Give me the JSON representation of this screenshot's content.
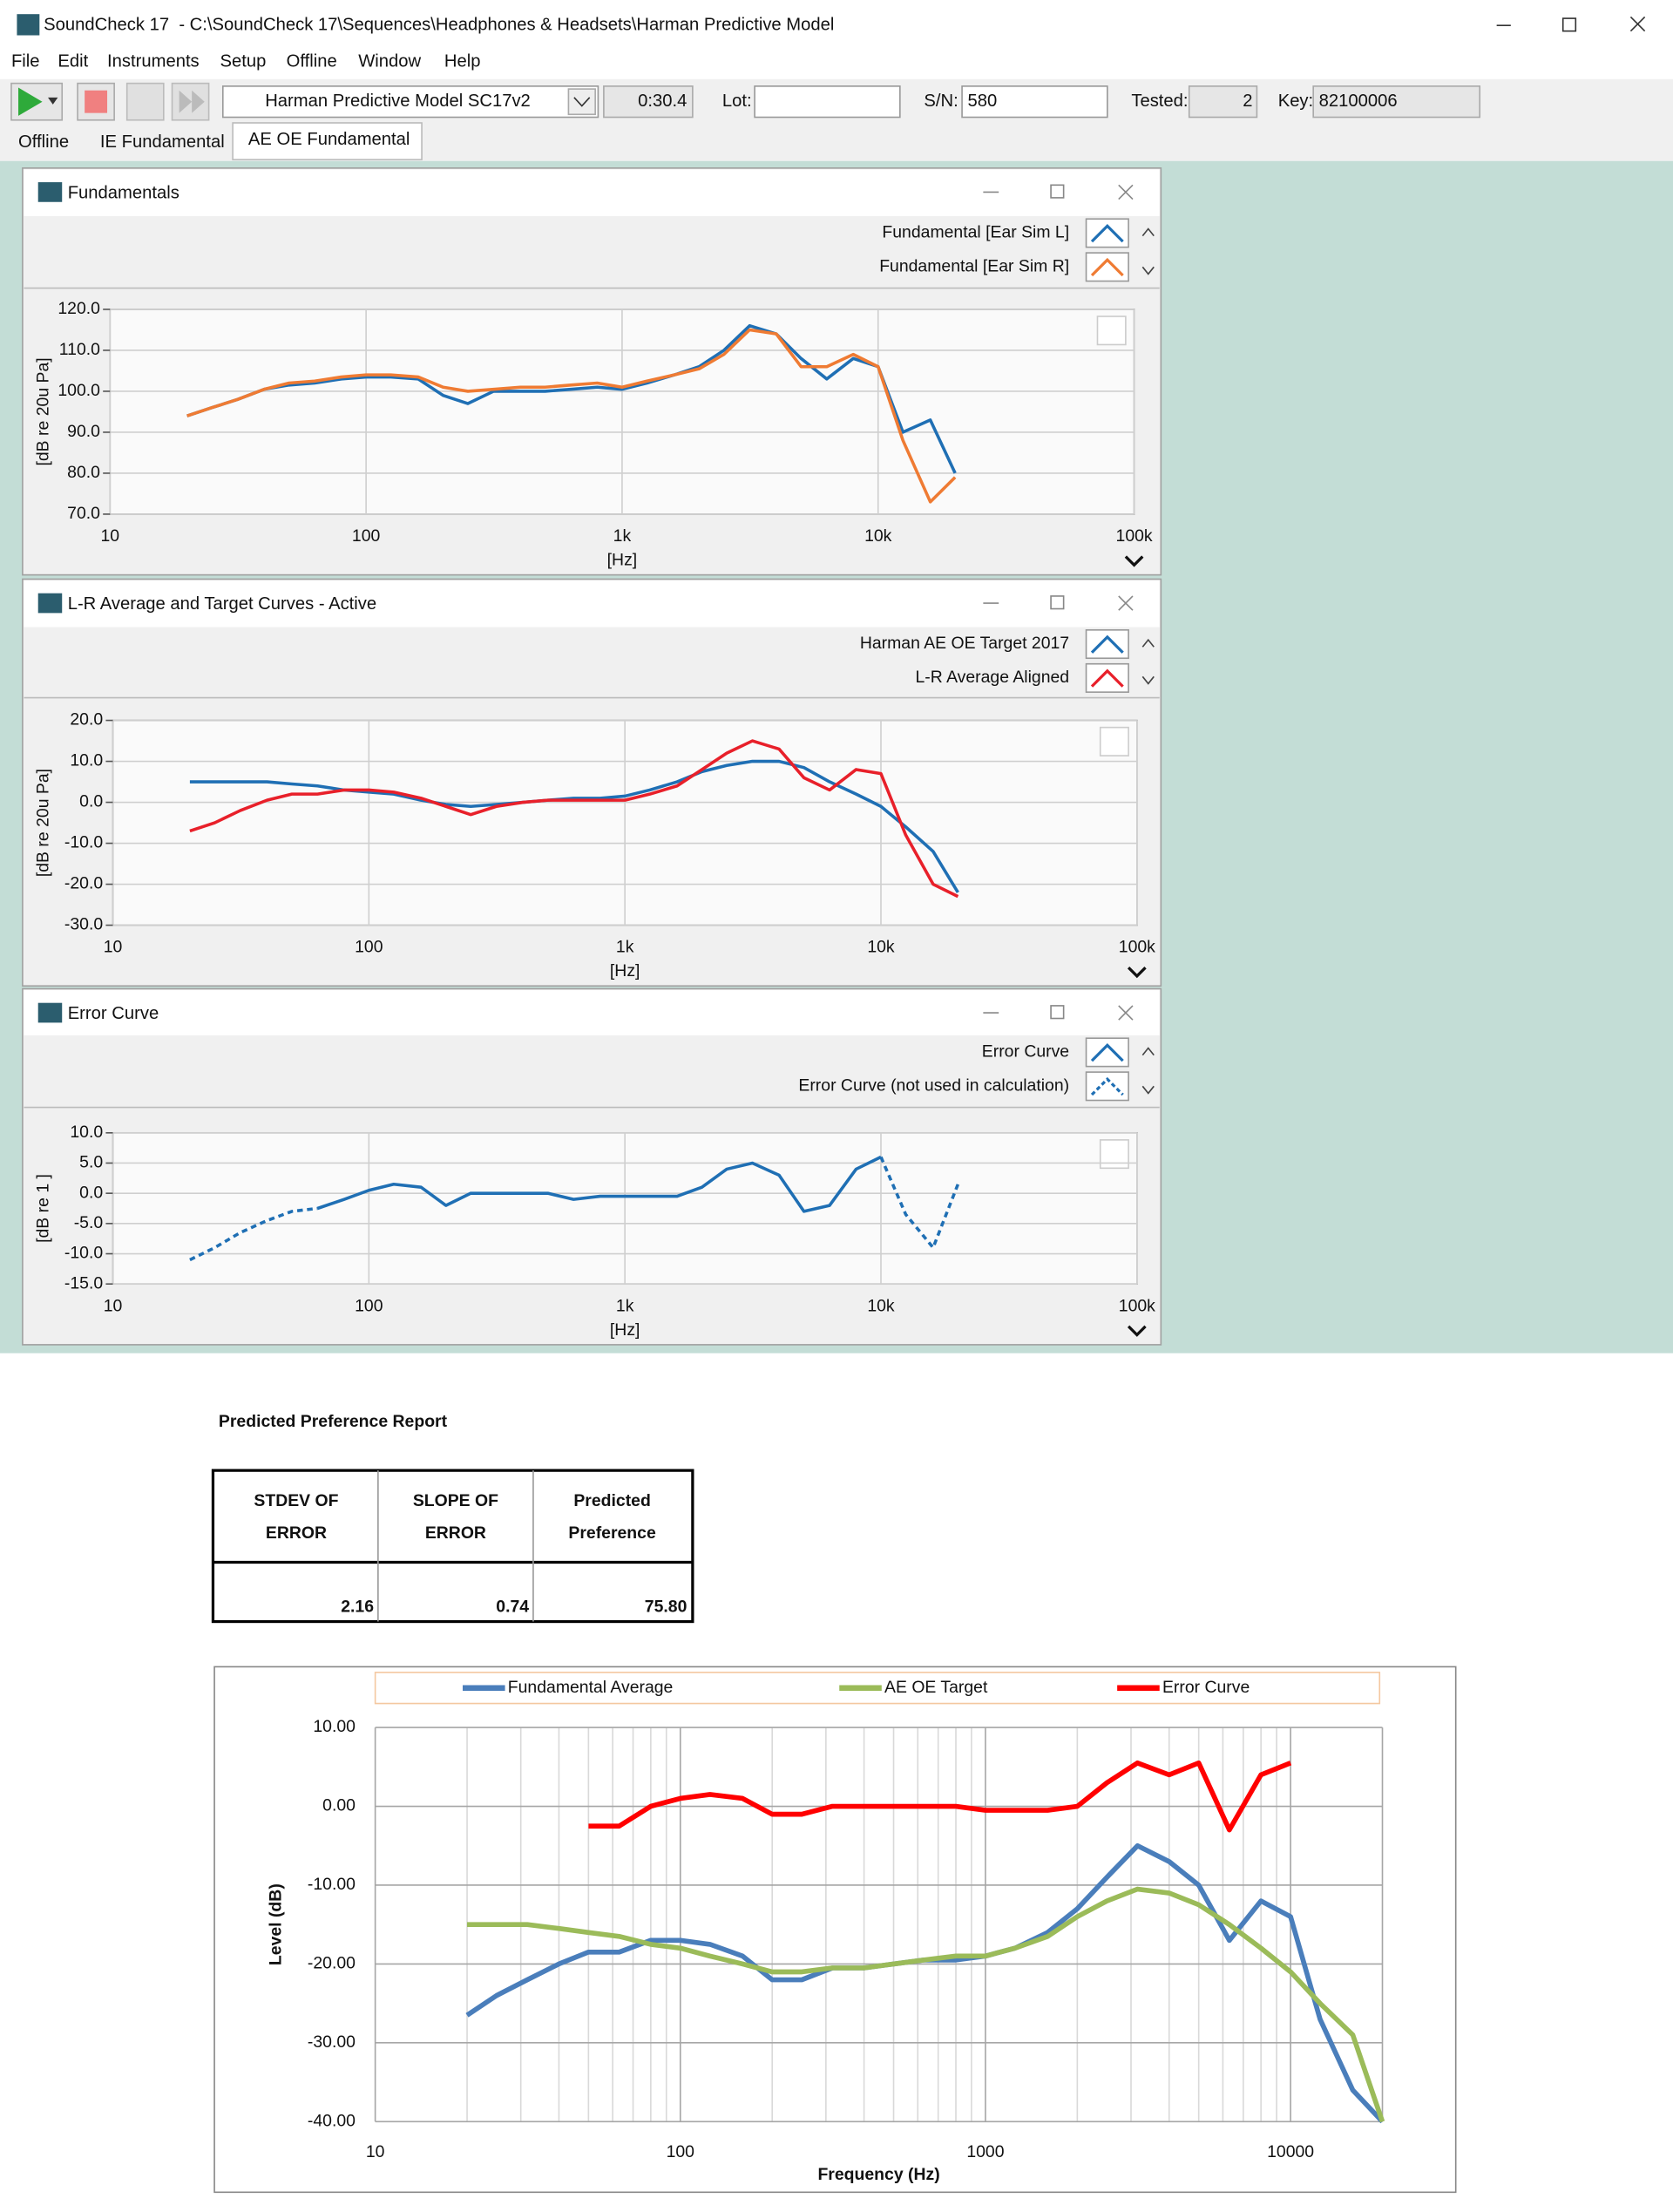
{
  "window": {
    "title": "SoundCheck 17  - C:\\SoundCheck 17\\Sequences\\Headphones & Headsets\\Harman Predictive Model"
  },
  "menu": [
    "File",
    "Edit",
    "Instruments",
    "Setup",
    "Offline",
    "Window",
    "Help"
  ],
  "toolbar": {
    "sequence": "Harman Predictive Model SC17v2",
    "time": "0:30.4",
    "lot_label": "Lot:",
    "sn_label": "S/N:",
    "sn": "580",
    "tested_label": "Tested:",
    "tested": "2",
    "key_label": "Key:",
    "key": "82100006"
  },
  "tabs": [
    "Offline",
    "IE Fundamental",
    "AE OE Fundamental"
  ],
  "report": {
    "title": "Predicted Preference Report",
    "table": {
      "header": [
        [
          "STDEV OF",
          "ERROR"
        ],
        [
          "SLOPE OF",
          "ERROR"
        ],
        [
          "Predicted",
          "Preference"
        ]
      ],
      "rows": [
        [
          "2.16",
          "0.74",
          "75.80"
        ]
      ]
    }
  },
  "chart_data": [
    {
      "type": "line",
      "title": "Fundamentals",
      "log_x": true,
      "grid": true,
      "xlabel": "[Hz]",
      "ylabel": "[dB re 20u Pa]",
      "x": [
        20,
        25,
        31.5,
        40,
        50,
        63,
        80,
        100,
        125,
        160,
        200,
        250,
        315,
        400,
        500,
        630,
        800,
        1000,
        1250,
        1600,
        2000,
        2500,
        3150,
        4000,
        5000,
        6300,
        8000,
        10000,
        12500,
        16000,
        20000
      ],
      "xlim": [
        10,
        100000
      ],
      "xticks": [
        10,
        100,
        {
          "value": 1000,
          "label": "1k"
        },
        {
          "value": 10000,
          "label": "10k"
        },
        {
          "value": 100000,
          "label": "100k"
        }
      ],
      "ylim": [
        70,
        120
      ],
      "yticks": [
        {
          "value": 70,
          "label": "70.0"
        },
        {
          "value": 80,
          "label": "80.0"
        },
        {
          "value": 90,
          "label": "90.0"
        },
        {
          "value": 100,
          "label": "100.0"
        },
        {
          "value": 110,
          "label": "110.0"
        },
        {
          "value": 120,
          "label": "120.0"
        }
      ],
      "series": [
        {
          "name": "Fundamental [Ear Sim L]",
          "color": "#1f6fb4",
          "values": [
            94,
            96,
            98,
            100.5,
            101.5,
            102,
            103,
            103.5,
            103.5,
            103,
            99,
            97,
            100,
            100,
            100,
            100.5,
            101,
            100.5,
            102,
            104,
            106,
            110,
            116,
            114,
            108,
            103,
            108,
            106,
            90,
            93,
            80
          ]
        },
        {
          "name": "Fundamental [Ear Sim R]",
          "color": "#ef7b33",
          "values": [
            94,
            96,
            98,
            100.5,
            102,
            102.5,
            103.5,
            104,
            104,
            103.5,
            101,
            100,
            100.5,
            101,
            101,
            101.5,
            102,
            101,
            102.5,
            104,
            105.5,
            109,
            115,
            114,
            106,
            106,
            109,
            106,
            88,
            73,
            79
          ]
        }
      ]
    },
    {
      "type": "line",
      "title": "L-R Average and Target Curves - Active",
      "log_x": true,
      "grid": true,
      "xlabel": "[Hz]",
      "ylabel": "[dB re 20u Pa]",
      "x": [
        20,
        25,
        31.5,
        40,
        50,
        63,
        80,
        100,
        125,
        160,
        200,
        250,
        315,
        400,
        500,
        630,
        800,
        1000,
        1250,
        1600,
        2000,
        2500,
        3150,
        4000,
        5000,
        6300,
        8000,
        10000,
        12500,
        16000,
        20000
      ],
      "xlim": [
        10,
        100000
      ],
      "xticks": [
        10,
        100,
        {
          "value": 1000,
          "label": "1k"
        },
        {
          "value": 10000,
          "label": "10k"
        },
        {
          "value": 100000,
          "label": "100k"
        }
      ],
      "ylim": [
        -30,
        20
      ],
      "yticks": [
        {
          "value": -30,
          "label": "-30.0"
        },
        {
          "value": -20,
          "label": "-20.0"
        },
        {
          "value": -10,
          "label": "-10.0"
        },
        {
          "value": 0,
          "label": "0.0"
        },
        {
          "value": 10,
          "label": "10.0"
        },
        {
          "value": 20,
          "label": "20.0"
        }
      ],
      "series": [
        {
          "name": "Harman AE OE Target 2017",
          "color": "#1f6fb4",
          "values": [
            5,
            5,
            5,
            5,
            4.5,
            4,
            3,
            2.5,
            2,
            0.5,
            -0.5,
            -1,
            -0.5,
            0,
            0.5,
            1,
            1,
            1.5,
            3,
            5,
            7.5,
            9,
            10,
            10,
            8.5,
            5,
            2,
            -1,
            -6,
            -12,
            -22
          ]
        },
        {
          "name": "L-R Average Aligned",
          "color": "#e8202a",
          "values": [
            -7,
            -5,
            -2,
            0.5,
            2,
            2,
            3,
            3,
            2.5,
            1,
            -1,
            -3,
            -1,
            0,
            0.5,
            0.5,
            0.5,
            0.5,
            2,
            4,
            8,
            12,
            15,
            13,
            6,
            3,
            8,
            7,
            -8,
            -20,
            -23
          ]
        }
      ]
    },
    {
      "type": "line",
      "title": "Error Curve",
      "log_x": true,
      "grid": true,
      "xlabel": "[Hz]",
      "ylabel": "[dB re 1 ]",
      "x": [
        20,
        25,
        31.5,
        40,
        50,
        63,
        80,
        100,
        125,
        160,
        200,
        250,
        315,
        400,
        500,
        630,
        800,
        1000,
        1250,
        1600,
        2000,
        2500,
        3150,
        4000,
        5000,
        6300,
        8000,
        10000,
        12500,
        16000,
        20000
      ],
      "xlim": [
        10,
        100000
      ],
      "xticks": [
        10,
        100,
        {
          "value": 1000,
          "label": "1k"
        },
        {
          "value": 10000,
          "label": "10k"
        },
        {
          "value": 100000,
          "label": "100k"
        }
      ],
      "ylim": [
        -15,
        10
      ],
      "yticks": [
        {
          "value": -15,
          "label": "-15.0"
        },
        {
          "value": -10,
          "label": "-10.0"
        },
        {
          "value": -5,
          "label": "-5.0"
        },
        {
          "value": 0,
          "label": "0.0"
        },
        {
          "value": 5,
          "label": "5.0"
        },
        {
          "value": 10,
          "label": "10.0"
        }
      ],
      "series": [
        {
          "name": "Error Curve",
          "color": "#1f6fb4",
          "dash": false,
          "values": [
            null,
            null,
            null,
            null,
            null,
            -2.5,
            -1,
            0.5,
            1.5,
            1,
            -2,
            0,
            0,
            0,
            0,
            -1,
            -0.5,
            -0.5,
            -0.5,
            -0.5,
            1,
            4,
            5,
            3,
            -3,
            -2,
            4,
            6,
            null,
            null,
            null
          ]
        },
        {
          "name": "Error Curve (not used in calculation)",
          "color": "#1f6fb4",
          "dash": true,
          "values": [
            -11,
            -9,
            -6.5,
            -4.5,
            -3,
            -2.5,
            null,
            null,
            null,
            null,
            null,
            null,
            null,
            null,
            null,
            null,
            null,
            null,
            null,
            null,
            null,
            null,
            null,
            null,
            null,
            null,
            null,
            6,
            -3.5,
            -9,
            1.5
          ]
        }
      ]
    },
    {
      "type": "line",
      "log_x": true,
      "grid": true,
      "minor_grid": true,
      "legend": "top",
      "xlabel": "Frequency (Hz)",
      "ylabel": "Level (dB)",
      "x": [
        20,
        25,
        31.5,
        40,
        50,
        63,
        80,
        100,
        125,
        160,
        200,
        250,
        315,
        400,
        500,
        630,
        800,
        1000,
        1250,
        1600,
        2000,
        2500,
        3150,
        4000,
        5000,
        6300,
        8000,
        10000,
        12500,
        16000,
        20000
      ],
      "xlim": [
        10,
        20000
      ],
      "xticks": [
        10,
        100,
        1000,
        10000
      ],
      "ylim": [
        -40,
        10
      ],
      "yticks": [
        {
          "value": -40,
          "label": "-40.00"
        },
        {
          "value": -30,
          "label": "-30.00"
        },
        {
          "value": -20,
          "label": "-20.00"
        },
        {
          "value": -10,
          "label": "-10.00"
        },
        {
          "value": 0,
          "label": "0.00"
        },
        {
          "value": 10,
          "label": "10.00"
        }
      ],
      "series": [
        {
          "name": "Fundamental Average",
          "color": "#4a7ebb",
          "values": [
            -26.5,
            -24,
            -22,
            -20,
            -18.5,
            -18.5,
            -17,
            -17,
            -17.5,
            -19,
            -22,
            -22,
            -20.5,
            -20.5,
            -20,
            -19.5,
            -19.5,
            -19,
            -18,
            -16,
            -13,
            -9,
            -5,
            -7,
            -10,
            -17,
            -12,
            -14,
            -27,
            -36,
            -40
          ]
        },
        {
          "name": "AE OE Target",
          "color": "#9bbb59",
          "values": [
            -15,
            -15,
            -15,
            -15.5,
            -16,
            -16.5,
            -17.5,
            -18,
            -19,
            -20,
            -21,
            -21,
            -20.5,
            -20.5,
            -20,
            -19.5,
            -19,
            -19,
            -18,
            -16.5,
            -14,
            -12,
            -10.5,
            -11,
            -12.5,
            -15,
            -18,
            -21,
            -25,
            -29,
            -40
          ]
        },
        {
          "name": "Error Curve",
          "color": "#ff0000",
          "values": [
            null,
            null,
            null,
            null,
            -2.5,
            -2.5,
            0,
            1,
            1.5,
            1,
            -1,
            -1,
            0,
            0,
            0,
            0,
            0,
            -0.5,
            -0.5,
            -0.5,
            0,
            3,
            5.5,
            4,
            5.5,
            -3,
            4,
            5.5,
            null,
            null,
            null
          ]
        }
      ]
    }
  ]
}
